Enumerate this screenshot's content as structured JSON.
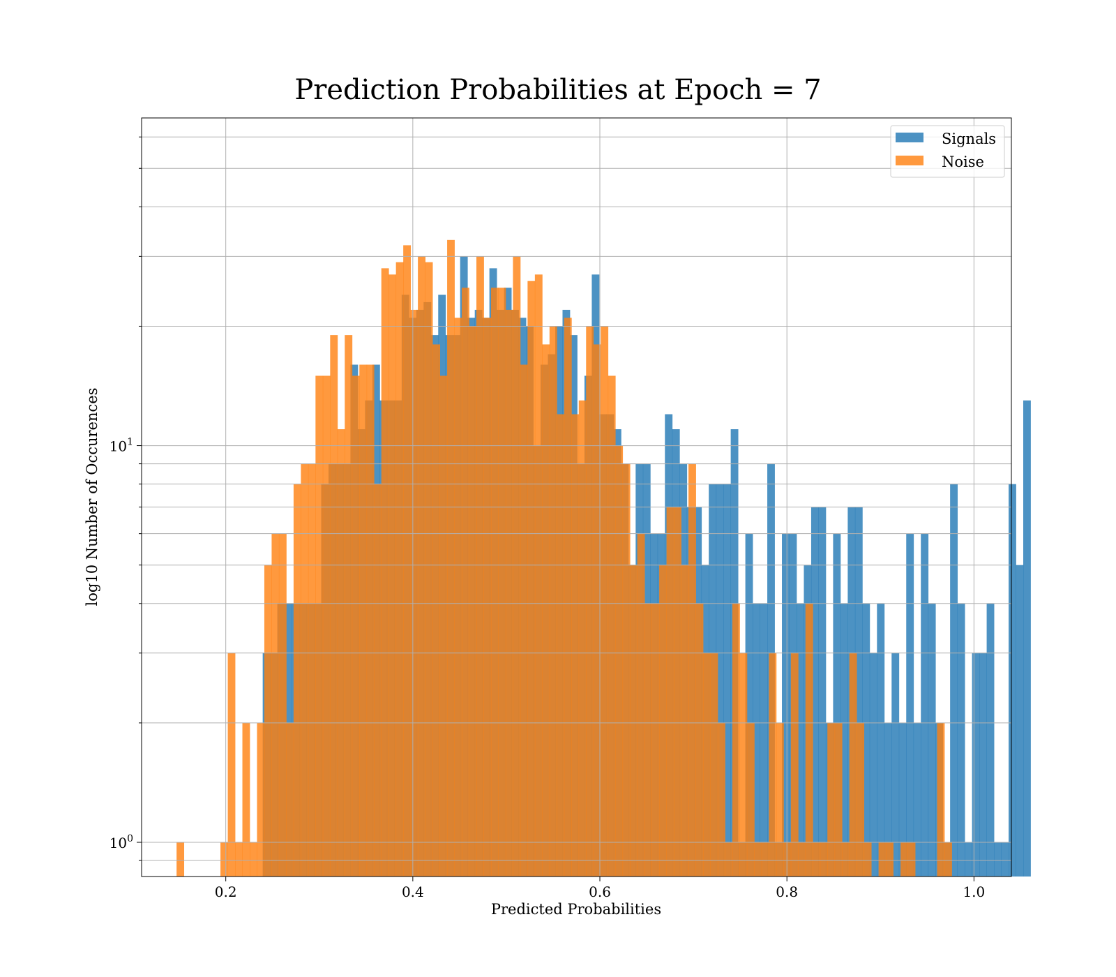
{
  "chart_data": {
    "type": "histogram",
    "title": "Prediction Probabilities at Epoch = 7",
    "xlabel": "Predicted Probabilities",
    "ylabel": "log10 Number of Occurences",
    "xlim": [
      0.11,
      1.04
    ],
    "ylim": [
      0.82,
      67
    ],
    "yscale": "log",
    "grid": true,
    "legend_position": "top-right",
    "xticks": [
      {
        "value": 0.2,
        "label": "0.2"
      },
      {
        "value": 0.4,
        "label": "0.4"
      },
      {
        "value": 0.6,
        "label": "0.6"
      },
      {
        "value": 0.8,
        "label": "0.8"
      },
      {
        "value": 1.0,
        "label": "1.0"
      }
    ],
    "yticks": [
      {
        "value": 1,
        "base": "10",
        "exp": "0"
      },
      {
        "value": 10,
        "base": "10",
        "exp": "1"
      }
    ],
    "series": [
      {
        "name": "Signals",
        "color": "#1f77b4",
        "opacity": 0.8,
        "bin_start": 0.2395,
        "bin_width": 0.007819,
        "counts": [
          3,
          3,
          4,
          4,
          4,
          4,
          4,
          4,
          8,
          9,
          9,
          9,
          16,
          11,
          13,
          16,
          13,
          13,
          13,
          24,
          21,
          22,
          23,
          19,
          24,
          19,
          19,
          30,
          21,
          22,
          21,
          28,
          22,
          25,
          22,
          21,
          20,
          10,
          16,
          17,
          20,
          22,
          19,
          9,
          15,
          27,
          12,
          12,
          11,
          9,
          5,
          9,
          9,
          6,
          6,
          12,
          11,
          9,
          7,
          7,
          5,
          8,
          8,
          8,
          11,
          1,
          6,
          4,
          4,
          9,
          1,
          6,
          6,
          4,
          5,
          7,
          7,
          2,
          6,
          4,
          7,
          7,
          4,
          3,
          4,
          2,
          3,
          2,
          6,
          2,
          6,
          4,
          2,
          1,
          8,
          4,
          1,
          3,
          3,
          4,
          1,
          1,
          8,
          5,
          13
        ]
      },
      {
        "name": "Noise",
        "color": "#ff7f0e",
        "opacity": 0.8,
        "bin_start": 0.1474,
        "bin_width": 0.007819,
        "counts": [
          1,
          0,
          0,
          0,
          0,
          0,
          1,
          3,
          1,
          2,
          1,
          2,
          5,
          6,
          6,
          2,
          8,
          9,
          9,
          15,
          15,
          19,
          11,
          19,
          15,
          16,
          16,
          8,
          28,
          27,
          29,
          32,
          22,
          30,
          29,
          18,
          15,
          33,
          21,
          25,
          20,
          30,
          21,
          25,
          25,
          22,
          30,
          16,
          26,
          27,
          18,
          20,
          12,
          21,
          12,
          13,
          20,
          18,
          20,
          15,
          10,
          9,
          5,
          6,
          4,
          4,
          5,
          7,
          7,
          5,
          9,
          4,
          3,
          3,
          2,
          1,
          4,
          3,
          2,
          1,
          1,
          3,
          2,
          1,
          3,
          1,
          4,
          1,
          1,
          2,
          2,
          1,
          3,
          2,
          1,
          0,
          1,
          1,
          0,
          1,
          1,
          0,
          0,
          0,
          2,
          1
        ]
      }
    ]
  }
}
